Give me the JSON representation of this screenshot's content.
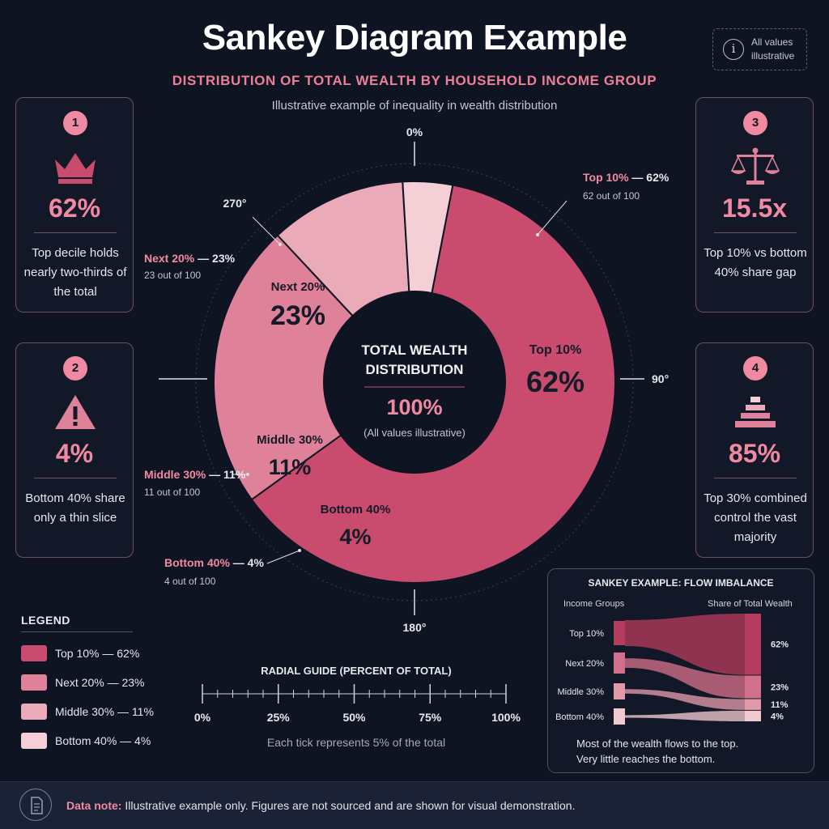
{
  "header": {
    "title": "Sankey Diagram Example",
    "subtitle": "DISTRIBUTION OF TOTAL WEALTH BY HOUSEHOLD INCOME GROUP",
    "caption": "Illustrative example of inequality in wealth distribution",
    "note": "All values illustrative"
  },
  "cards": [
    {
      "number": "1",
      "icon": "crown-icon",
      "stat": "62%",
      "desc": "Top decile holds nearly two-thirds of the total"
    },
    {
      "number": "2",
      "icon": "warning-icon",
      "stat": "4%",
      "desc": "Bottom 40% share only a thin slice"
    },
    {
      "number": "3",
      "icon": "scales-icon",
      "stat": "15.5x",
      "desc": "Top 10% vs bottom 40% share gap"
    },
    {
      "number": "4",
      "icon": "pyramid-icon",
      "stat": "85%",
      "desc": "Top 30% combined control the vast majority"
    }
  ],
  "colors": {
    "top10": "#c94c6e",
    "next20": "#e0819a",
    "middle30": "#ebaab8",
    "bottom40": "#f4cfd6",
    "accent": "#f08aa2",
    "background": "#0f1422"
  },
  "chart_data": [
    {
      "type": "pie",
      "title": "TOTAL WEALTH DISTRIBUTION",
      "center_value": "100%",
      "center_note": "(All values illustrative)",
      "categories": [
        "Top 10%",
        "Next 20%",
        "Middle 30%",
        "Bottom 40%"
      ],
      "values": [
        62,
        23,
        11,
        4
      ],
      "slice_labels": [
        "62%",
        "23%",
        "11%",
        "4%"
      ],
      "callouts": [
        {
          "name": "Top 10%",
          "value": "62%",
          "sub": "62 out of 100"
        },
        {
          "name": "Next 20%",
          "value": "23%",
          "sub": "23 out of 100"
        },
        {
          "name": "Middle 30%",
          "value": "11%",
          "sub": "11 out of 100"
        },
        {
          "name": "Bottom 40%",
          "value": "4%",
          "sub": "4 out of 100"
        }
      ],
      "angle_labels": [
        "0%",
        "90°",
        "180°",
        "270°"
      ],
      "legend": {
        "title": "LEGEND",
        "placement": "bottom-left",
        "entries": [
          "Top 10% — 62%",
          "Next 20% — 23%",
          "Middle 30% — 11%",
          "Bottom 40% — 4%"
        ]
      }
    },
    {
      "type": "sankey",
      "title": "SANKEY EXAMPLE: FLOW IMBALANCE",
      "left_header": "Income Groups",
      "right_header": "Share of Total Wealth",
      "sources": [
        "Top 10%",
        "Next 20%",
        "Middle 30%",
        "Bottom 40%"
      ],
      "values": [
        62,
        23,
        11,
        4
      ],
      "value_labels": [
        "62%",
        "23%",
        "11%",
        "4%"
      ],
      "caption": "Most of the wealth flows to the top. Very little reaches the bottom."
    },
    {
      "type": "scale",
      "title": "RADIAL GUIDE (PERCENT OF TOTAL)",
      "range": [
        0,
        100
      ],
      "tick_step": 5,
      "tick_labels": [
        "0%",
        "25%",
        "50%",
        "75%",
        "100%"
      ],
      "caption": "Each tick represents 5% of the total"
    }
  ],
  "footer": {
    "label": "Data note:",
    "text": "Illustrative example only. Figures are not sourced and are shown for visual demonstration."
  }
}
